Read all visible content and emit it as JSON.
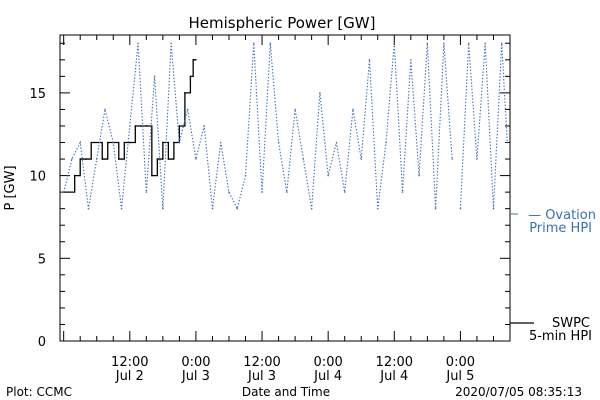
{
  "footer": {
    "left": "Plot: CCMC",
    "center": "Date and Time",
    "right": "2020/07/05 08:35:13"
  },
  "colors": {
    "swpc": "#000000",
    "ovation": "#3a6fb8"
  },
  "chart_data": {
    "type": "line",
    "title": "Hemispheric Power [GW]",
    "xlabel": "Date and Time",
    "ylabel": "P [GW]",
    "xlim": [
      "2020-07-01 23:20",
      "2020-07-05 09:00"
    ],
    "ylim": [
      0,
      18.5
    ],
    "y_major_ticks": [
      0,
      5,
      10,
      15
    ],
    "x_tick_labels": [
      {
        "time": "2020-07-02 12:00",
        "line1": "12:00",
        "line2": "Jul 2"
      },
      {
        "time": "2020-07-03 00:00",
        "line1": "0:00",
        "line2": "Jul 3"
      },
      {
        "time": "2020-07-03 12:00",
        "line1": "12:00",
        "line2": "Jul 3"
      },
      {
        "time": "2020-07-04 00:00",
        "line1": "0:00",
        "line2": "Jul 4"
      },
      {
        "time": "2020-07-04 12:00",
        "line1": "12:00",
        "line2": "Jul 4"
      },
      {
        "time": "2020-07-05 00:00",
        "line1": "0:00",
        "line2": "Jul 5"
      }
    ],
    "series": [
      {
        "name": "SWPC 5-min HPI",
        "legend_lines": [
          "SWPC",
          "5-min HPI"
        ],
        "color": "#000000",
        "style": "solid",
        "x": [
          "2020-07-02 00:00",
          "2020-07-02 02:00",
          "2020-07-02 03:00",
          "2020-07-02 04:00",
          "2020-07-02 05:00",
          "2020-07-02 07:00",
          "2020-07-02 08:00",
          "2020-07-02 10:00",
          "2020-07-02 11:00",
          "2020-07-02 12:00",
          "2020-07-02 13:00",
          "2020-07-02 14:00",
          "2020-07-02 15:00",
          "2020-07-02 16:00",
          "2020-07-02 17:00",
          "2020-07-02 18:00",
          "2020-07-02 19:00",
          "2020-07-02 20:00",
          "2020-07-02 21:00",
          "2020-07-02 22:00",
          "2020-07-02 23:00",
          "2020-07-02 23:30",
          "2020-07-03 00:00"
        ],
        "values": [
          9,
          10,
          11,
          11,
          12,
          11,
          12,
          11,
          12,
          12,
          13,
          13,
          13,
          10,
          11,
          12,
          11,
          12,
          13,
          15,
          16,
          17,
          17
        ]
      },
      {
        "name": "Ovation Prime HPI",
        "legend_lines": [
          "— Ovation",
          "Prime HPI"
        ],
        "color": "#3a6fb8",
        "style": "dotted",
        "x": [
          "2020-07-02 00:00",
          "2020-07-02 01:30",
          "2020-07-02 03:00",
          "2020-07-02 04:30",
          "2020-07-02 06:00",
          "2020-07-02 07:30",
          "2020-07-02 09:00",
          "2020-07-02 10:30",
          "2020-07-02 12:00",
          "2020-07-02 13:30",
          "2020-07-02 15:00",
          "2020-07-02 16:30",
          "2020-07-02 18:00",
          "2020-07-02 19:30",
          "2020-07-02 21:00",
          "2020-07-02 22:30",
          "2020-07-03 00:00",
          "2020-07-03 01:30",
          "2020-07-03 03:00",
          "2020-07-03 04:30",
          "2020-07-03 06:00",
          "2020-07-03 07:30",
          "2020-07-03 09:00",
          "2020-07-03 10:30",
          "2020-07-03 12:00",
          "2020-07-03 13:30",
          "2020-07-03 15:00",
          "2020-07-03 16:30",
          "2020-07-03 18:00",
          "2020-07-03 19:30",
          "2020-07-03 21:00",
          "2020-07-03 22:30",
          "2020-07-04 00:00",
          "2020-07-04 01:30",
          "2020-07-04 03:00",
          "2020-07-04 04:30",
          "2020-07-04 06:00",
          "2020-07-04 07:30",
          "2020-07-04 09:00",
          "2020-07-04 10:30",
          "2020-07-04 12:00",
          "2020-07-04 13:30",
          "2020-07-04 15:00",
          "2020-07-04 16:30",
          "2020-07-04 18:00",
          "2020-07-04 19:30",
          "2020-07-04 21:00",
          "2020-07-04 22:30",
          "2020-07-05 00:00",
          "2020-07-05 01:30",
          "2020-07-05 03:00",
          "2020-07-05 04:30",
          "2020-07-05 06:00",
          "2020-07-05 07:30",
          "2020-07-05 08:30"
        ],
        "values": [
          9,
          11,
          12,
          8,
          11,
          14,
          12,
          8,
          13,
          18,
          9,
          16,
          8,
          18,
          12,
          14,
          11,
          13,
          8,
          12,
          9,
          8,
          10,
          18,
          9,
          18,
          12,
          9,
          14,
          11,
          8,
          15,
          10,
          12,
          9,
          14,
          11,
          17,
          8,
          12,
          18,
          9,
          17,
          10,
          18,
          8,
          18,
          11,
          8,
          18,
          11,
          18,
          8,
          18,
          12
        ],
        "gaps_after": [
          "2020-07-04 22:30"
        ]
      }
    ]
  }
}
